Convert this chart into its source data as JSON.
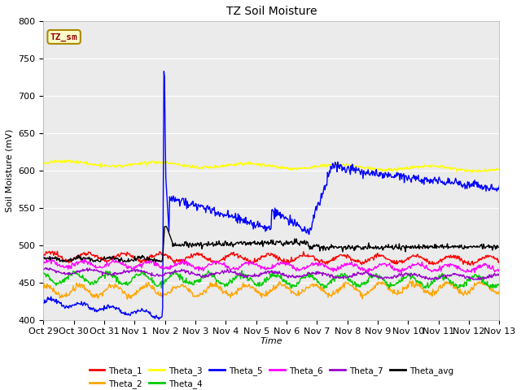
{
  "title": "TZ Soil Moisture",
  "xlabel": "Time",
  "ylabel": "Soil Moisture (mV)",
  "ylim": [
    400,
    800
  ],
  "plot_bg": "#ebebeb",
  "fig_bg": "#ffffff",
  "series_colors": {
    "Theta_1": "#ff0000",
    "Theta_2": "#ffa500",
    "Theta_3": "#ffff00",
    "Theta_4": "#00cc00",
    "Theta_5": "#0000ff",
    "Theta_6": "#ff00ff",
    "Theta_7": "#9900cc",
    "Theta_avg": "#000000"
  },
  "x_tick_labels": [
    "Oct 29",
    "Oct 30",
    "Oct 31",
    "Nov 1",
    "Nov 2",
    "Nov 3",
    "Nov 4",
    "Nov 5",
    "Nov 6",
    "Nov 7",
    "Nov 8",
    "Nov 9",
    "Nov 10",
    "Nov 11",
    "Nov 12",
    "Nov 13"
  ],
  "legend_row1": [
    "Theta_1",
    "Theta_2",
    "Theta_3",
    "Theta_4",
    "Theta_5",
    "Theta_6"
  ],
  "legend_row2": [
    "Theta_7",
    "Theta_avg"
  ],
  "annotation_text": "TZ_sm",
  "annotation_fg": "#8b0000",
  "annotation_bg": "#ffffcc",
  "annotation_edge": "#aa8800",
  "grid_color": "#ffffff",
  "spike_day": 4.0,
  "n_days": 15
}
